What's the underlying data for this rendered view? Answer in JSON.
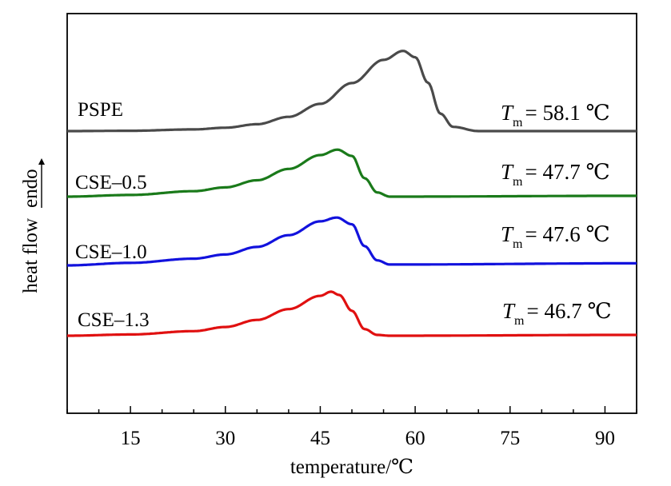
{
  "chart_data": {
    "type": "line",
    "xlabel": "temperature/℃",
    "ylabel_main": "heat flow",
    "ylabel_arrow_text": "endo",
    "xlim": [
      5,
      95
    ],
    "x_ticks": [
      15,
      30,
      45,
      60,
      75,
      90
    ],
    "x_minor_step": 5,
    "y_ticks_visible": false,
    "grid": false,
    "legend": "none",
    "series": [
      {
        "name": "PSPE",
        "color": "#4a4a4a",
        "annotation": {
          "symbol": "T",
          "subscript": "m",
          "value_text": "= 58.1 ℃"
        },
        "points": [
          [
            5,
            0.0
          ],
          [
            15,
            0.003
          ],
          [
            25,
            0.016
          ],
          [
            30,
            0.032
          ],
          [
            35,
            0.065
          ],
          [
            40,
            0.135
          ],
          [
            45,
            0.258
          ],
          [
            50,
            0.455
          ],
          [
            55,
            0.675
          ],
          [
            58.1,
            0.76
          ],
          [
            60,
            0.7
          ],
          [
            62,
            0.46
          ],
          [
            64,
            0.165
          ],
          [
            66,
            0.04
          ],
          [
            70,
            0.0
          ],
          [
            95,
            0.0
          ]
        ],
        "baseline_offset": 0.0
      },
      {
        "name": "CSE–0.5",
        "color": "#1a7a1a",
        "annotation": {
          "symbol": "T",
          "subscript": "m",
          "value_text": "= 47.7 ℃"
        },
        "points": [
          [
            5,
            0.0
          ],
          [
            15,
            0.02
          ],
          [
            25,
            0.065
          ],
          [
            30,
            0.11
          ],
          [
            35,
            0.195
          ],
          [
            40,
            0.33
          ],
          [
            45,
            0.495
          ],
          [
            47.7,
            0.56
          ],
          [
            50,
            0.485
          ],
          [
            52,
            0.22
          ],
          [
            54,
            0.05
          ],
          [
            56,
            0.0
          ],
          [
            95,
            0.01
          ]
        ],
        "baseline_offset": 0.0
      },
      {
        "name": "CSE–1.0",
        "color": "#1212dd",
        "annotation": {
          "symbol": "T",
          "subscript": "m",
          "value_text": "= 47.6 ℃"
        },
        "points": [
          [
            5,
            0.0
          ],
          [
            15,
            0.03
          ],
          [
            25,
            0.08
          ],
          [
            30,
            0.13
          ],
          [
            35,
            0.22
          ],
          [
            40,
            0.36
          ],
          [
            45,
            0.525
          ],
          [
            47.6,
            0.57
          ],
          [
            50,
            0.49
          ],
          [
            52,
            0.23
          ],
          [
            54,
            0.06
          ],
          [
            56,
            0.01
          ],
          [
            95,
            0.025
          ]
        ],
        "baseline_offset": 0.0
      },
      {
        "name": "CSE–1.3",
        "color": "#e01010",
        "annotation": {
          "symbol": "T",
          "subscript": "m",
          "value_text": "= 46.7 ℃"
        },
        "points": [
          [
            5,
            0.0
          ],
          [
            15,
            0.015
          ],
          [
            25,
            0.055
          ],
          [
            30,
            0.105
          ],
          [
            35,
            0.19
          ],
          [
            40,
            0.32
          ],
          [
            45,
            0.48
          ],
          [
            46.7,
            0.53
          ],
          [
            48,
            0.49
          ],
          [
            50,
            0.3
          ],
          [
            52,
            0.08
          ],
          [
            54,
            0.01
          ],
          [
            56,
            0.0
          ],
          [
            95,
            0.01
          ]
        ],
        "baseline_offset": 0.0
      }
    ]
  }
}
